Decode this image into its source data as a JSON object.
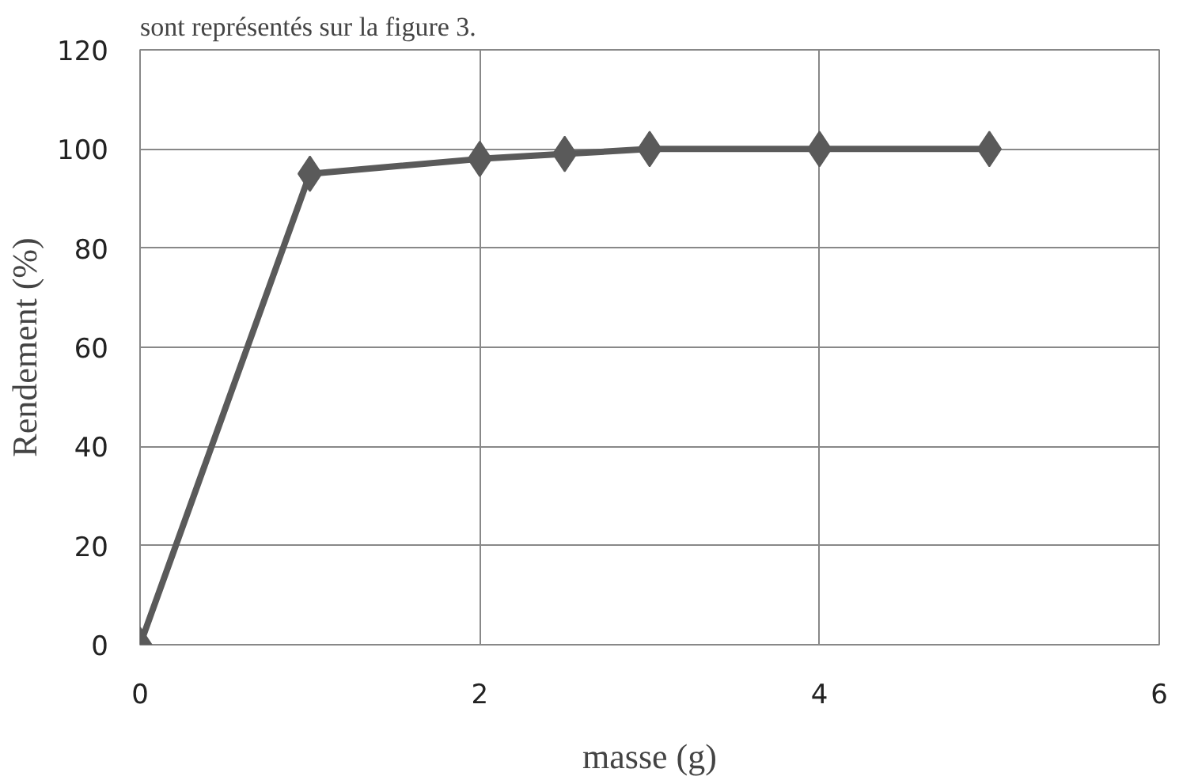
{
  "chart_data": {
    "type": "line",
    "annotations": [
      "sont représentés sur la figure 3."
    ],
    "xlabel": "masse (g)",
    "ylabel": "Rendement (%)",
    "x": [
      0,
      1,
      2,
      2.5,
      3,
      4,
      5
    ],
    "series": [
      {
        "color": "#5a5a5a",
        "values": [
          0,
          95,
          98,
          99,
          100,
          100,
          100
        ]
      }
    ],
    "xlim": [
      0,
      6
    ],
    "xticks": [
      0,
      2,
      4,
      6
    ],
    "ylim": [
      0,
      120
    ],
    "yticks": [
      0,
      20,
      40,
      60,
      80,
      100,
      120
    ],
    "grid": true,
    "marker": "diamond",
    "line_style": "solid"
  }
}
